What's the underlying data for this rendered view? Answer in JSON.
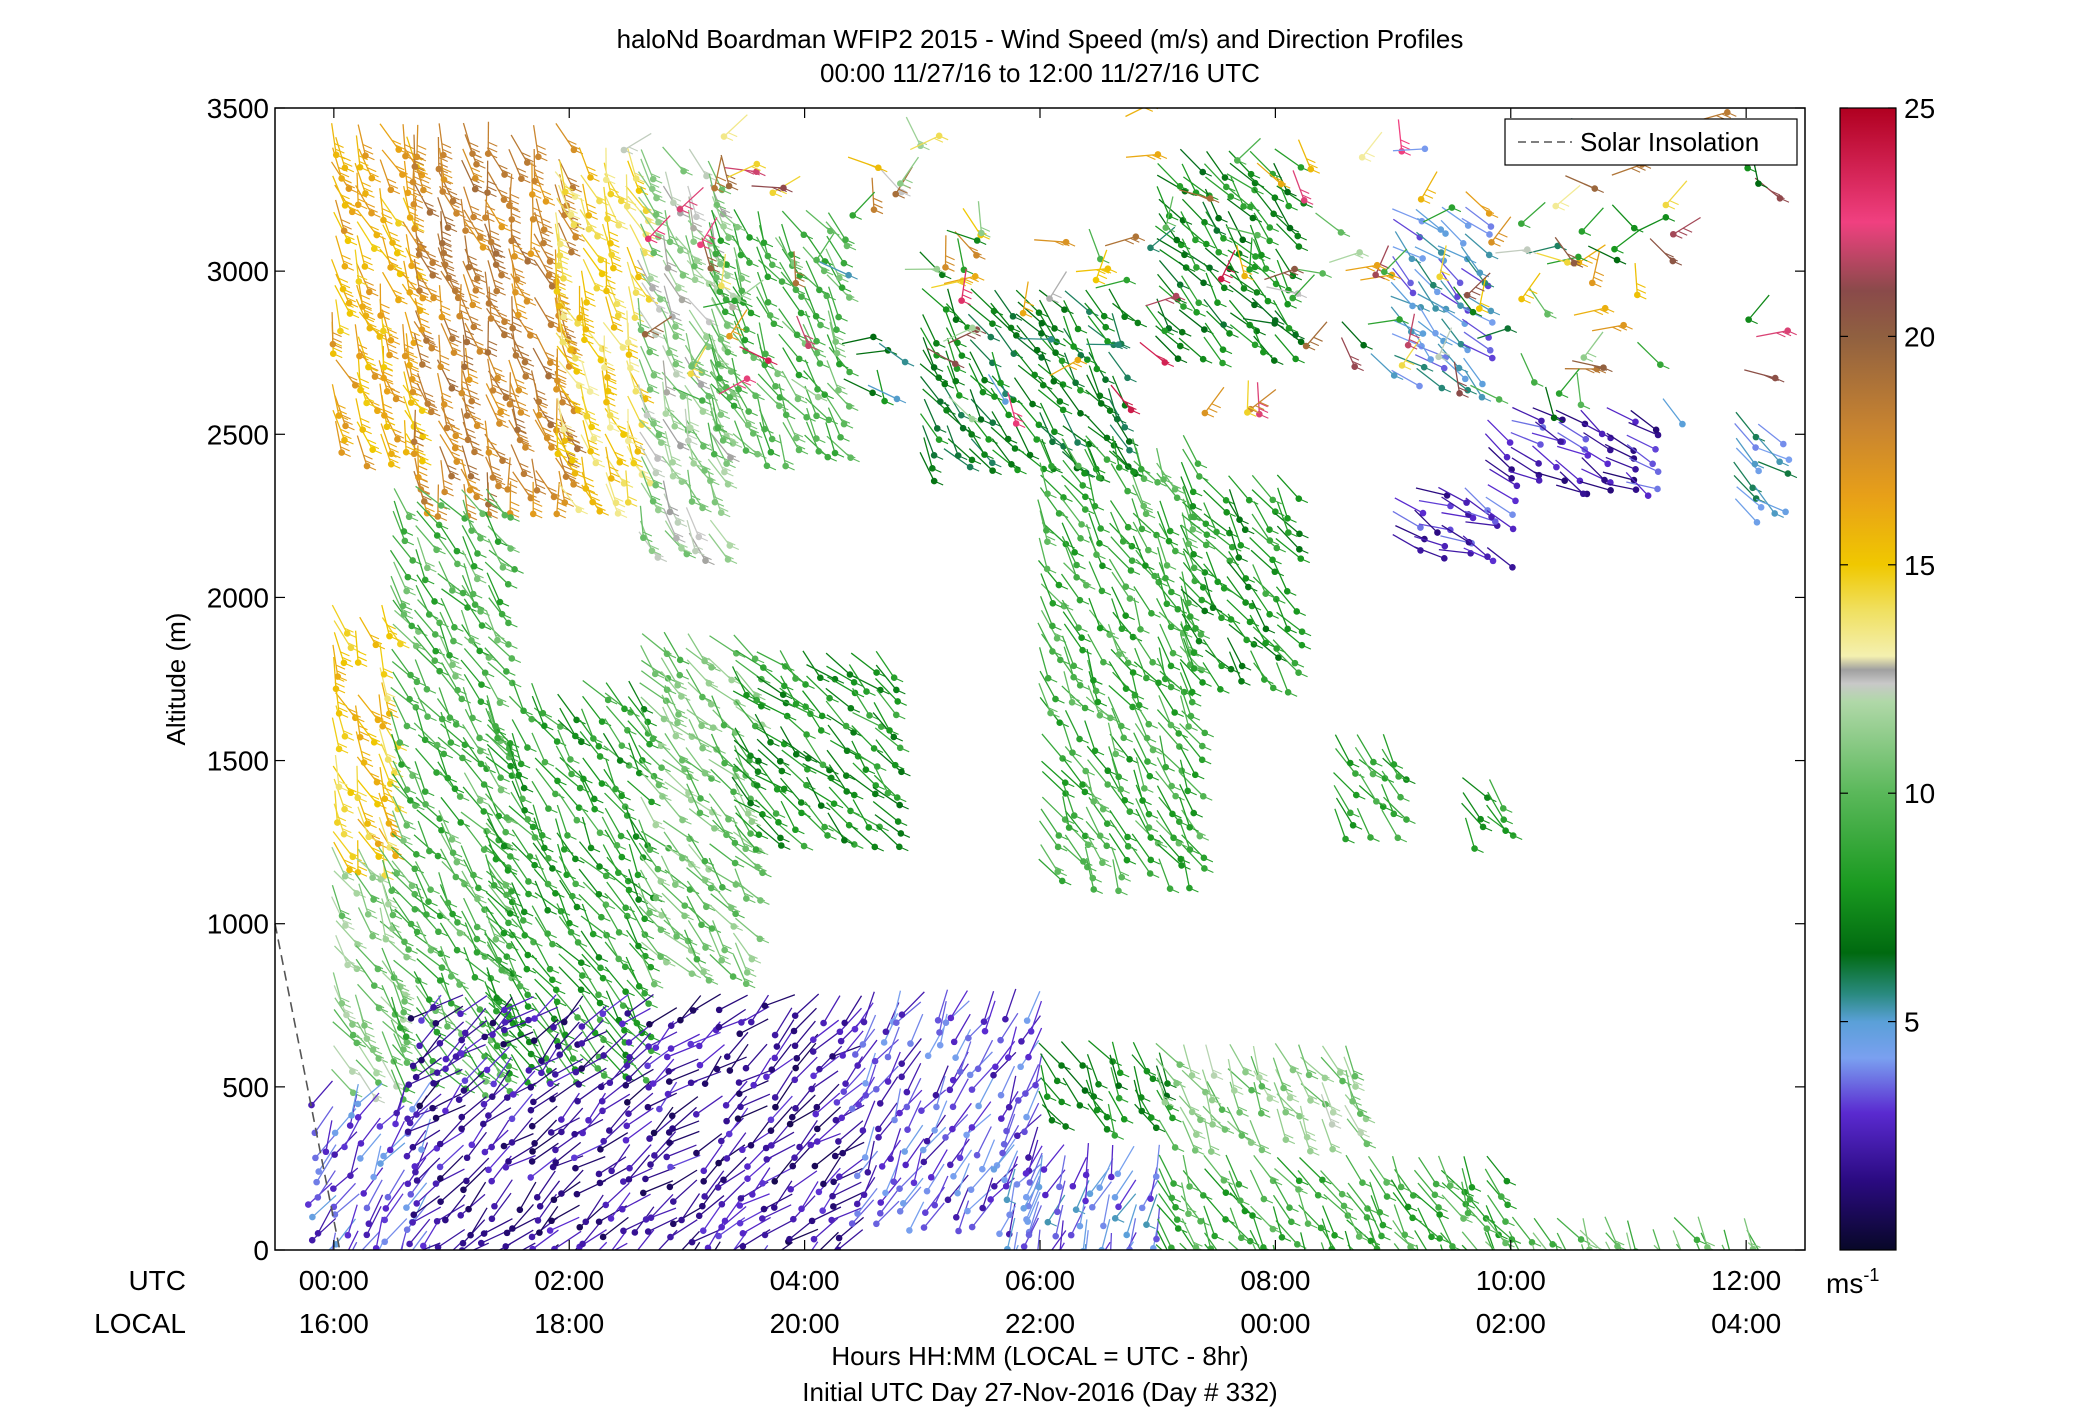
{
  "chart_data": {
    "type": "wind-barb-profile",
    "title": "haloNd Boardman WFIP2 2015 - Wind Speed (m/s) and Direction Profiles",
    "subtitle": "00:00 11/27/16 to 12:00 11/27/16  UTC",
    "ylabel": "Altitude (m)",
    "xlabel": "Hours HH:MM  (LOCAL = UTC - 8hr)",
    "footer": "Initial UTC Day 27-Nov-2016 (Day # 332)",
    "row_labels": {
      "utc": "UTC",
      "local": "LOCAL"
    },
    "xlim_hours": [
      -0.5,
      12.5
    ],
    "ylim": [
      0,
      3500
    ],
    "yticks": [
      {
        "value": 0,
        "label": "0"
      },
      {
        "value": 500,
        "label": "500"
      },
      {
        "value": 1000,
        "label": "1000"
      },
      {
        "value": 1500,
        "label": "1500"
      },
      {
        "value": 2000,
        "label": "2000"
      },
      {
        "value": 2500,
        "label": "2500"
      },
      {
        "value": 3000,
        "label": "3000"
      },
      {
        "value": 3500,
        "label": "3500"
      }
    ],
    "xticks": [
      {
        "hour": 0,
        "utc": "00:00",
        "local": "16:00"
      },
      {
        "hour": 2,
        "utc": "02:00",
        "local": "18:00"
      },
      {
        "hour": 4,
        "utc": "04:00",
        "local": "20:00"
      },
      {
        "hour": 6,
        "utc": "06:00",
        "local": "22:00"
      },
      {
        "hour": 8,
        "utc": "08:00",
        "local": "00:00"
      },
      {
        "hour": 10,
        "utc": "10:00",
        "local": "02:00"
      },
      {
        "hour": 12,
        "utc": "12:00",
        "local": "04:00"
      }
    ],
    "legend": {
      "label": "Solar Insolation",
      "position": "top-right"
    },
    "solar_insolation_line": [
      [
        -0.5,
        1000
      ],
      [
        0.05,
        0
      ]
    ],
    "colorbar": {
      "unit": "ms-1",
      "range": [
        0,
        25
      ],
      "ticks": [
        5,
        10,
        15,
        20,
        25
      ],
      "stops": [
        {
          "v": 0,
          "c": "#080828"
        },
        {
          "v": 1.5,
          "c": "#2a0a80"
        },
        {
          "v": 3.0,
          "c": "#5a2ad0"
        },
        {
          "v": 4.2,
          "c": "#7aa0f0"
        },
        {
          "v": 5.0,
          "c": "#5aa0d8"
        },
        {
          "v": 5.6,
          "c": "#2a8a80"
        },
        {
          "v": 6.5,
          "c": "#006a10"
        },
        {
          "v": 8.0,
          "c": "#1a9a20"
        },
        {
          "v": 10.0,
          "c": "#5ab85a"
        },
        {
          "v": 12.0,
          "c": "#b0d8a8"
        },
        {
          "v": 12.4,
          "c": "#c8c8c8"
        },
        {
          "v": 12.7,
          "c": "#a0a0a0"
        },
        {
          "v": 13.0,
          "c": "#f4f0b0"
        },
        {
          "v": 14.0,
          "c": "#f0e060"
        },
        {
          "v": 15.0,
          "c": "#f0c800"
        },
        {
          "v": 16.5,
          "c": "#e8a018"
        },
        {
          "v": 18.0,
          "c": "#c88430"
        },
        {
          "v": 20.0,
          "c": "#906040"
        },
        {
          "v": 21.0,
          "c": "#8a4a4a"
        },
        {
          "v": 22.5,
          "c": "#f04080"
        },
        {
          "v": 25.0,
          "c": "#b00020"
        }
      ]
    },
    "regimes": [
      {
        "t0": 0.0,
        "t1": 0.7,
        "h0": 2500,
        "h1": 3450,
        "speed": 16,
        "dir": 200
      },
      {
        "t0": 0.7,
        "t1": 1.9,
        "h0": 2350,
        "h1": 3480,
        "speed": 18,
        "dir": 195
      },
      {
        "t0": 1.9,
        "t1": 2.6,
        "h0": 2350,
        "h1": 3400,
        "speed": 14.5,
        "dir": 200
      },
      {
        "t0": 2.6,
        "t1": 3.2,
        "h0": 2200,
        "h1": 3400,
        "speed": 11.5,
        "dir": 205
      },
      {
        "t0": 3.2,
        "t1": 4.2,
        "h0": 2500,
        "h1": 3200,
        "speed": 9.5,
        "dir": 210
      },
      {
        "t0": 0.0,
        "t1": 0.5,
        "h0": 1250,
        "h1": 2000,
        "speed": 15,
        "dir": 200
      },
      {
        "t0": 0.0,
        "t1": 0.5,
        "h0": 550,
        "h1": 1250,
        "speed": 11,
        "dir": 210
      },
      {
        "t0": 0.5,
        "t1": 1.3,
        "h0": 550,
        "h1": 2350,
        "speed": 9.5,
        "dir": 215
      },
      {
        "t0": 1.3,
        "t1": 2.6,
        "h0": 600,
        "h1": 1750,
        "speed": 8.5,
        "dir": 215
      },
      {
        "t0": 2.6,
        "t1": 3.4,
        "h0": 900,
        "h1": 1900,
        "speed": 10.5,
        "dir": 220
      },
      {
        "t0": 3.4,
        "t1": 4.6,
        "h0": 1300,
        "h1": 1850,
        "speed": 8,
        "dir": 225
      },
      {
        "t0": 5.0,
        "t1": 6.6,
        "h0": 2450,
        "h1": 2950,
        "speed": 7,
        "dir": 215
      },
      {
        "t0": 6.0,
        "t1": 7.2,
        "h0": 1200,
        "h1": 2500,
        "speed": 9,
        "dir": 210
      },
      {
        "t0": 7.0,
        "t1": 8.0,
        "h0": 2800,
        "h1": 3400,
        "speed": 7.5,
        "dir": 220
      },
      {
        "t0": 7.2,
        "t1": 8.0,
        "h0": 1800,
        "h1": 2400,
        "speed": 8,
        "dir": 215
      },
      {
        "t0": 9.0,
        "t1": 9.6,
        "h0": 2700,
        "h1": 3200,
        "speed": 4.5,
        "dir": 230
      },
      {
        "t0": 9.8,
        "t1": 11.1,
        "h0": 2350,
        "h1": 2600,
        "speed": 2.5,
        "dir": 240
      },
      {
        "t0": 9.0,
        "t1": 9.8,
        "h0": 2150,
        "h1": 2350,
        "speed": 2.8,
        "dir": 245
      },
      {
        "t0": 11.9,
        "t1": 12.1,
        "h0": 2300,
        "h1": 2600,
        "speed": 5,
        "dir": 230
      },
      {
        "t0": 8.5,
        "t1": 8.9,
        "h0": 1350,
        "h1": 1600,
        "speed": 8.5,
        "dir": 215
      },
      {
        "t0": 9.6,
        "t1": 9.8,
        "h0": 1330,
        "h1": 1450,
        "speed": 8,
        "dir": 215
      },
      {
        "t0": 0.0,
        "t1": 0.9,
        "h0": 20,
        "h1": 550,
        "speed": 3.5,
        "dir": 150
      },
      {
        "t0": 0.9,
        "t1": 4.6,
        "h0": 20,
        "h1": 800,
        "speed": 2.0,
        "dir": 130
      },
      {
        "t0": 4.6,
        "t1": 6.0,
        "h0": 150,
        "h1": 820,
        "speed": 3.2,
        "dir": 150
      },
      {
        "t0": 5.8,
        "t1": 7.0,
        "h0": 20,
        "h1": 350,
        "speed": 4.0,
        "dir": 160
      },
      {
        "t0": 6.0,
        "t1": 7.0,
        "h0": 450,
        "h1": 650,
        "speed": 7.5,
        "dir": 210
      },
      {
        "t0": 7.0,
        "t1": 8.6,
        "h0": 400,
        "h1": 650,
        "speed": 11,
        "dir": 210
      },
      {
        "t0": 7.0,
        "t1": 9.8,
        "h0": 20,
        "h1": 320,
        "speed": 9,
        "dir": 210
      },
      {
        "t0": 9.8,
        "t1": 12.1,
        "h0": 20,
        "h1": 120,
        "speed": 10,
        "dir": 210
      }
    ],
    "scatter_points": 170
  }
}
